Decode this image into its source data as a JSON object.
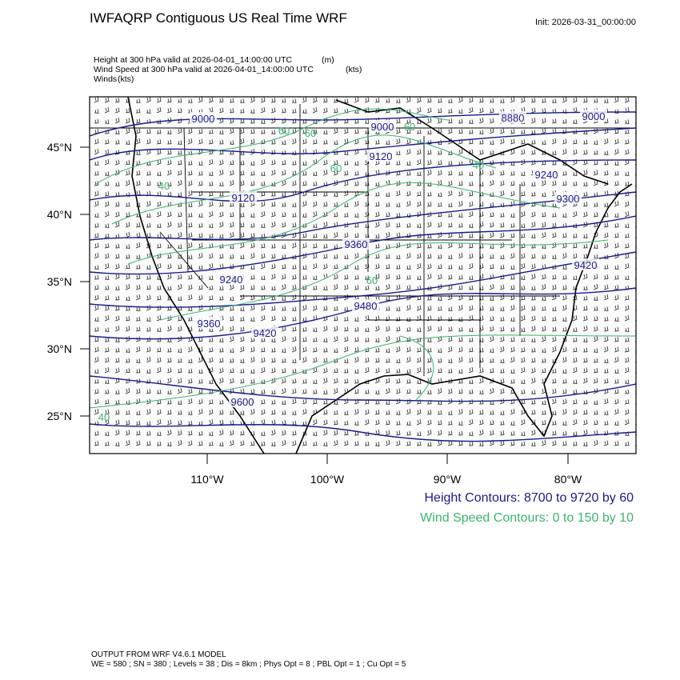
{
  "header": {
    "title": "IWFAQRP Contiguous US Real Time WRF",
    "init": "Init: 2026-03-31_00:00:00",
    "fields": [
      {
        "name": "Height at 300 hPa valid at 2026-04-01_14:00:00 UTC",
        "unit": "(m)"
      },
      {
        "name": "Wind Speed at 300 hPa valid at 2026-04-01_14:00:00 UTC",
        "unit": "(kts)"
      },
      {
        "name": "Winds",
        "unit": "(kts)"
      }
    ]
  },
  "map": {
    "lat_labels": [
      "45°N",
      "40°N",
      "35°N",
      "30°N",
      "25°N"
    ],
    "lon_labels": [
      "110°W",
      "100°W",
      "90°W",
      "80°W"
    ],
    "height_labels": [
      "9000",
      "9000",
      "8880",
      "9000",
      "9120",
      "9120",
      "9240",
      "9300",
      "9360",
      "9420",
      "9240",
      "9480",
      "9360",
      "9420",
      "9600"
    ],
    "speed_labels": [
      "60",
      "60",
      "60",
      "40",
      "60",
      "40",
      "60",
      "40"
    ],
    "height_color": "#1a1a8c",
    "speed_color": "#3cb371"
  },
  "legend": [
    "Height Contours: 8700 to 9720 by 60",
    "Wind Speed Contours: 0 to 150 by 10"
  ],
  "footer": [
    "OUTPUT FROM WRF V4.6.1 MODEL",
    "WE = 580 ; SN = 380 ; Levels = 38 ; Dis = 8km ; Phys Opt = 8 ; PBL Opt = 1 ; Cu Opt = 5"
  ]
}
